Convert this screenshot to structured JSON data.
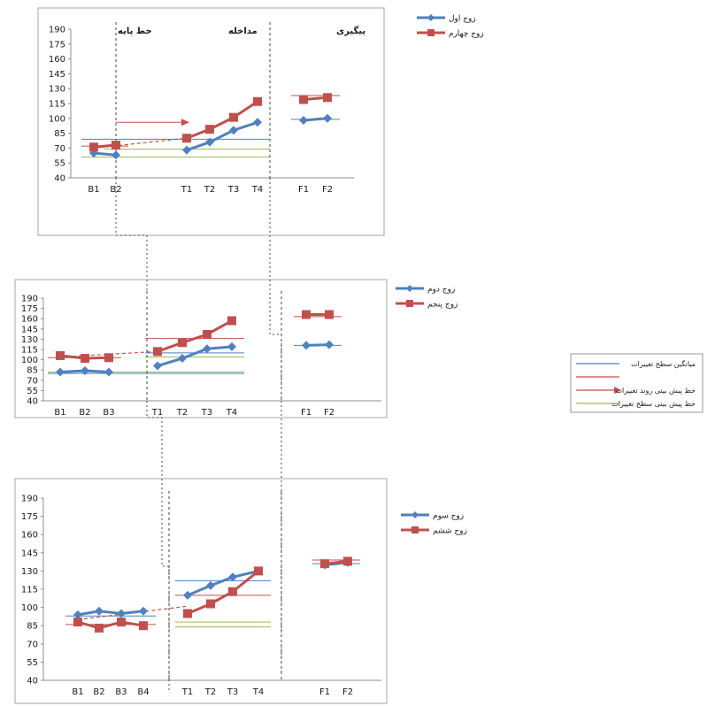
{
  "colors": {
    "blue": "#4f81bd",
    "red": "#c0504d",
    "green": "#9bbb59",
    "axis": "#8c8c8c",
    "frame": "#a6a6a6",
    "text": "#1a1a1a"
  },
  "legend_panel": {
    "entries": [
      {
        "label": "میانگین سطح تغییرات",
        "swatch": "blue-line"
      },
      {
        "label": "",
        "swatch": "red-line"
      },
      {
        "label": "خط پیش بینی روند تغییرات",
        "swatch": "red-arrow"
      },
      {
        "label": "خط پیش بینی سطح تغییرات",
        "swatch": "green-line"
      }
    ]
  },
  "chart_data": [
    {
      "type": "line",
      "title": "",
      "xlabel": "",
      "ylabel": "",
      "ylim": [
        40,
        190
      ],
      "yticks": [
        40,
        55,
        70,
        85,
        100,
        115,
        130,
        145,
        160,
        175,
        190
      ],
      "grid": false,
      "legend": "top-right",
      "phase_labels": [
        "خط پایه",
        "مداخله",
        "پیگیری"
      ],
      "categories": [
        "B1",
        "B2",
        "T1",
        "T2",
        "T3",
        "T4",
        "F1",
        "F2"
      ],
      "series": [
        {
          "name": "زوج اول",
          "color": "blue",
          "marker": "diamond",
          "segments": [
            [
              [
                "B1",
                65
              ],
              [
                "B2",
                63
              ]
            ],
            [
              [
                "T1",
                68
              ],
              [
                "T2",
                76
              ],
              [
                "T3",
                88
              ],
              [
                "T4",
                96
              ]
            ],
            [
              [
                "F1",
                98
              ],
              [
                "F2",
                100
              ]
            ]
          ]
        },
        {
          "name": "زوج چهارم",
          "color": "red",
          "marker": "square",
          "segments": [
            [
              [
                "B1",
                71
              ],
              [
                "B2",
                73
              ]
            ],
            [
              [
                "T1",
                80
              ],
              [
                "T2",
                89
              ],
              [
                "T3",
                101
              ],
              [
                "T4",
                117
              ]
            ],
            [
              [
                "F1",
                119
              ],
              [
                "F2",
                121
              ]
            ]
          ]
        }
      ],
      "levels": [
        {
          "color": "blue",
          "from": "B1",
          "to": "T4",
          "value": 79
        },
        {
          "color": "blue",
          "from": "F1",
          "to": "F2",
          "value": 99
        },
        {
          "color": "red",
          "from": "B1",
          "to": "B2",
          "value": 72
        },
        {
          "color": "red",
          "from": "F1",
          "to": "F2",
          "value": 123
        },
        {
          "color": "green",
          "from": "B1",
          "to": "T4",
          "value": 61
        },
        {
          "color": "green",
          "from": "B2",
          "to": "T4",
          "value": 69
        }
      ],
      "trend": {
        "from": [
          "B1",
          70
        ],
        "to": [
          "T1",
          80
        ]
      },
      "trend_arrow": {
        "from": "B2",
        "to": "T1",
        "value": 96
      }
    },
    {
      "type": "line",
      "title": "",
      "xlabel": "",
      "ylabel": "",
      "ylim": [
        40,
        190
      ],
      "yticks": [
        40,
        55,
        70,
        85,
        100,
        115,
        130,
        145,
        160,
        175,
        190
      ],
      "grid": false,
      "legend": "top-right",
      "categories": [
        "B1",
        "B2",
        "B3",
        "T1",
        "T2",
        "T3",
        "T4",
        "F1",
        "F2"
      ],
      "series": [
        {
          "name": "زوج دوم",
          "color": "blue",
          "marker": "diamond",
          "segments": [
            [
              [
                "B1",
                82
              ],
              [
                "B2",
                84
              ],
              [
                "B3",
                82
              ]
            ],
            [
              [
                "T1",
                91
              ],
              [
                "T2",
                102
              ],
              [
                "T3",
                116
              ],
              [
                "T4",
                119
              ]
            ],
            [
              [
                "F1",
                121
              ],
              [
                "F2",
                122
              ]
            ]
          ]
        },
        {
          "name": "زوج پنجم",
          "color": "red",
          "marker": "square",
          "segments": [
            [
              [
                "B1",
                106
              ],
              [
                "B2",
                102
              ],
              [
                "B3",
                103
              ]
            ],
            [
              [
                "T1",
                112
              ],
              [
                "T2",
                125
              ],
              [
                "T3",
                137
              ],
              [
                "T4",
                157
              ]
            ],
            [
              [
                "F1",
                166
              ],
              [
                "F2",
                166
              ]
            ]
          ]
        }
      ],
      "levels": [
        {
          "color": "blue",
          "from": "B1",
          "to": "T4",
          "value": 80
        },
        {
          "color": "blue",
          "from": "T1",
          "to": "T4",
          "value": 110
        },
        {
          "color": "blue",
          "from": "F1",
          "to": "F2",
          "value": 121
        },
        {
          "color": "red",
          "from": "B1",
          "to": "B3",
          "value": 103
        },
        {
          "color": "red",
          "from": "T1",
          "to": "T4",
          "value": 131
        },
        {
          "color": "red",
          "from": "F1",
          "to": "F2",
          "value": 163
        },
        {
          "color": "green",
          "from": "T1",
          "to": "T4",
          "value": 104
        },
        {
          "color": "green",
          "from": "B1",
          "to": "T4",
          "value": 82
        }
      ],
      "trend": {
        "from": [
          "B1",
          104
        ],
        "to": [
          "T1",
          112
        ]
      }
    },
    {
      "type": "line",
      "title": "",
      "xlabel": "",
      "ylabel": "",
      "ylim": [
        40,
        190
      ],
      "yticks": [
        40,
        55,
        70,
        85,
        100,
        115,
        130,
        145,
        160,
        175,
        190
      ],
      "grid": false,
      "legend": "top-right",
      "categories": [
        "B1",
        "B2",
        "B3",
        "B4",
        "T1",
        "T2",
        "T3",
        "T4",
        "F1",
        "F2"
      ],
      "series": [
        {
          "name": "زوج سوم",
          "color": "blue",
          "marker": "diamond",
          "segments": [
            [
              [
                "B1",
                94
              ],
              [
                "B2",
                97
              ],
              [
                "B3",
                95
              ],
              [
                "B4",
                97
              ]
            ],
            [
              [
                "T1",
                110
              ],
              [
                "T2",
                118
              ],
              [
                "T3",
                125
              ],
              [
                "T4",
                130
              ]
            ],
            [
              [
                "F1",
                135
              ],
              [
                "F2",
                137
              ]
            ]
          ]
        },
        {
          "name": "زوج ششم",
          "color": "red",
          "marker": "square",
          "segments": [
            [
              [
                "B1",
                88
              ],
              [
                "B2",
                83
              ],
              [
                "B3",
                88
              ],
              [
                "B4",
                85
              ]
            ],
            [
              [
                "T1",
                95
              ],
              [
                "T2",
                103
              ],
              [
                "T3",
                113
              ],
              [
                "T4",
                130
              ]
            ],
            [
              [
                "F1",
                136
              ],
              [
                "F2",
                138
              ]
            ]
          ]
        }
      ],
      "levels": [
        {
          "color": "blue",
          "from": "B1",
          "to": "B4",
          "value": 93
        },
        {
          "color": "blue",
          "from": "T1",
          "to": "T4",
          "value": 122
        },
        {
          "color": "blue",
          "from": "F1",
          "to": "F2",
          "value": 136
        },
        {
          "color": "red",
          "from": "B1",
          "to": "B4",
          "value": 86
        },
        {
          "color": "red",
          "from": "T1",
          "to": "T4",
          "value": 110
        },
        {
          "color": "red",
          "from": "F1",
          "to": "F2",
          "value": 139
        },
        {
          "color": "green",
          "from": "T1",
          "to": "T4",
          "value": 88
        },
        {
          "color": "green",
          "from": "T1",
          "to": "T4",
          "value": 84
        }
      ],
      "trend": {
        "from": [
          "B1",
          90
        ],
        "to": [
          "T1",
          101
        ]
      }
    }
  ]
}
